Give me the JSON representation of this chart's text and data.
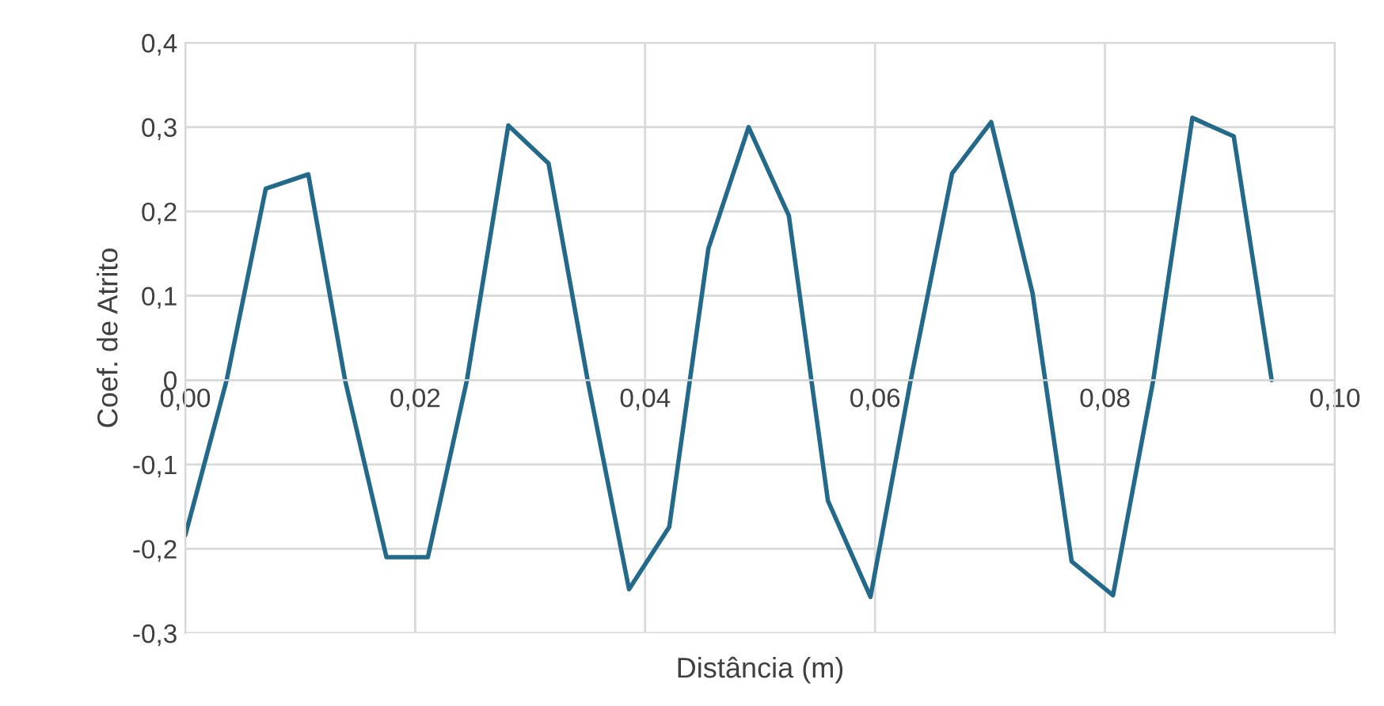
{
  "chart_data": {
    "type": "line",
    "xlabel": "Distância (m)",
    "ylabel": "Coef. de Atrito",
    "x": [
      0,
      0.0036,
      0.007,
      0.0107,
      0.0139,
      0.0175,
      0.0211,
      0.0245,
      0.0281,
      0.0316,
      0.035,
      0.0386,
      0.0421,
      0.0455,
      0.049,
      0.0525,
      0.0559,
      0.0596,
      0.0631,
      0.0667,
      0.0701,
      0.0737,
      0.0771,
      0.0807,
      0.0842,
      0.0876,
      0.0912,
      0.0945
    ],
    "series": [
      {
        "color": "#236a8a",
        "values": [
          -0.184,
          0,
          0.227,
          0.244,
          0,
          -0.21,
          -0.21,
          0,
          0.302,
          0.257,
          0,
          -0.248,
          -0.174,
          0.156,
          0.3,
          0.195,
          -0.143,
          -0.257,
          0,
          0.245,
          0.306,
          0.103,
          -0.215,
          -0.255,
          0,
          0.311,
          0.289,
          0
        ]
      }
    ],
    "xlim": [
      0,
      0.1
    ],
    "ylim": [
      -0.3,
      0.4
    ],
    "xticks": [
      {
        "value": 0,
        "label": "0,00"
      },
      {
        "value": 0.02,
        "label": "0,02"
      },
      {
        "value": 0.04,
        "label": "0,04"
      },
      {
        "value": 0.06,
        "label": "0,06"
      },
      {
        "value": 0.08,
        "label": "0,08"
      },
      {
        "value": 0.1,
        "label": "0,10"
      }
    ],
    "yticks": [
      {
        "value": -0.3,
        "label": "-0,3"
      },
      {
        "value": -0.2,
        "label": "-0,2"
      },
      {
        "value": -0.1,
        "label": "-0,1"
      },
      {
        "value": 0,
        "label": "0"
      },
      {
        "value": 0.1,
        "label": "0,1"
      },
      {
        "value": 0.2,
        "label": "0,2"
      },
      {
        "value": 0.3,
        "label": "0,3"
      },
      {
        "value": 0.4,
        "label": "0,4"
      }
    ],
    "grid": true,
    "legend": false,
    "marker": "none",
    "line_style": "solid"
  }
}
